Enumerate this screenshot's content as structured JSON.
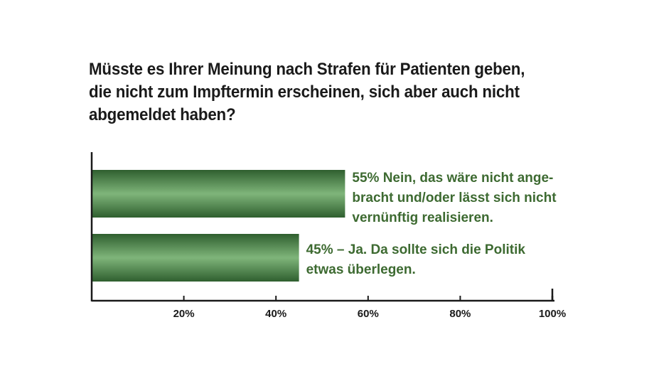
{
  "chart_data": {
    "type": "bar",
    "orientation": "horizontal",
    "title": "Müsste es Ihrer Meinung nach Strafen für Patienten geben, die nicht zum Impftermin erscheinen, sich aber auch nicht abgemeldet haben?",
    "categories": [
      "Nein, das wäre nicht angebracht und/oder lässt sich nicht vernünftig realisieren.",
      "Ja. Da sollte sich die Politik etwas überlegen."
    ],
    "values": [
      55,
      45
    ],
    "labels": [
      [
        "55% Nein, das wäre nicht ange-",
        "bracht und/oder lässt sich nicht",
        "vernünftig realisieren."
      ],
      [
        "45% – Ja. Da sollte sich die Politik",
        "etwas überlegen."
      ]
    ],
    "xlim": [
      0,
      100
    ],
    "xticks": [
      20,
      40,
      60,
      80,
      100
    ],
    "xtick_labels": [
      "20%",
      "40%",
      "60%",
      "80%",
      "100%"
    ],
    "xlabel": "",
    "ylabel": "",
    "grid": false,
    "legend": "none",
    "colors": {
      "bar_dark": "#2f5f2f",
      "bar_light": "#7fb57a",
      "label": "#3d6a31",
      "axis": "#1a1a1a"
    }
  }
}
